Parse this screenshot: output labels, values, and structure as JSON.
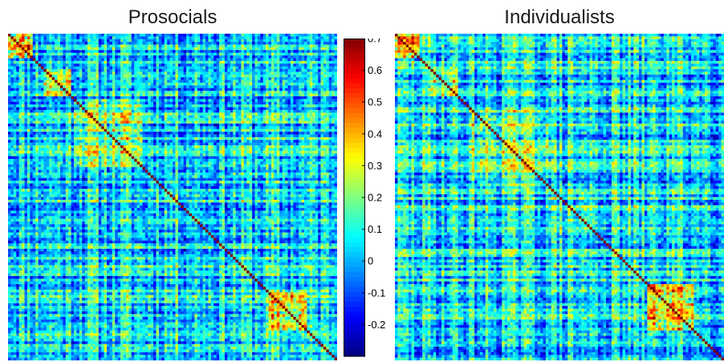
{
  "chart_data": [
    {
      "type": "heatmap",
      "title": "Prosocials",
      "size": 120,
      "seed": 11,
      "diagonal": 0.7,
      "blocks": [
        {
          "range": [
            0,
            8
          ],
          "value": 0.45
        },
        {
          "range": [
            13,
            22
          ],
          "value": 0.3
        },
        {
          "range": [
            24,
            48
          ],
          "value": 0.22
        },
        {
          "range": [
            52,
            70
          ],
          "value": 0.1
        },
        {
          "range": [
            95,
            108
          ],
          "value": 0.35
        }
      ],
      "colorbar": {
        "vmin": -0.3,
        "vmax": 0.7,
        "ticks": [
          0.7,
          0.6,
          0.5,
          0.4,
          0.3,
          0.2,
          0.1,
          0,
          -0.1,
          -0.2
        ]
      }
    },
    {
      "type": "heatmap",
      "title": "Individualists",
      "size": 120,
      "seed": 29,
      "diagonal": 0.7,
      "blocks": [
        {
          "range": [
            0,
            8
          ],
          "value": 0.4
        },
        {
          "range": [
            13,
            22
          ],
          "value": 0.25
        },
        {
          "range": [
            28,
            55
          ],
          "value": 0.18
        },
        {
          "range": [
            58,
            72
          ],
          "value": 0.1
        },
        {
          "range": [
            92,
            108
          ],
          "value": 0.38
        }
      ],
      "colorbar": {
        "vmin": -0.3,
        "vmax": 0.7,
        "ticks": [
          0.7,
          0.6,
          0.5,
          0.4,
          0.3,
          0.2,
          0.1,
          0,
          -0.1,
          -0.2
        ]
      }
    }
  ],
  "colorbar": {
    "vmin": -0.3,
    "vmax": 0.7,
    "ticks": [
      "0.7",
      "0.6",
      "0.5",
      "0.4",
      "0.3",
      "0.2",
      "0.1",
      "0",
      "-0.1",
      "-0.2"
    ],
    "colormap": "jet"
  }
}
